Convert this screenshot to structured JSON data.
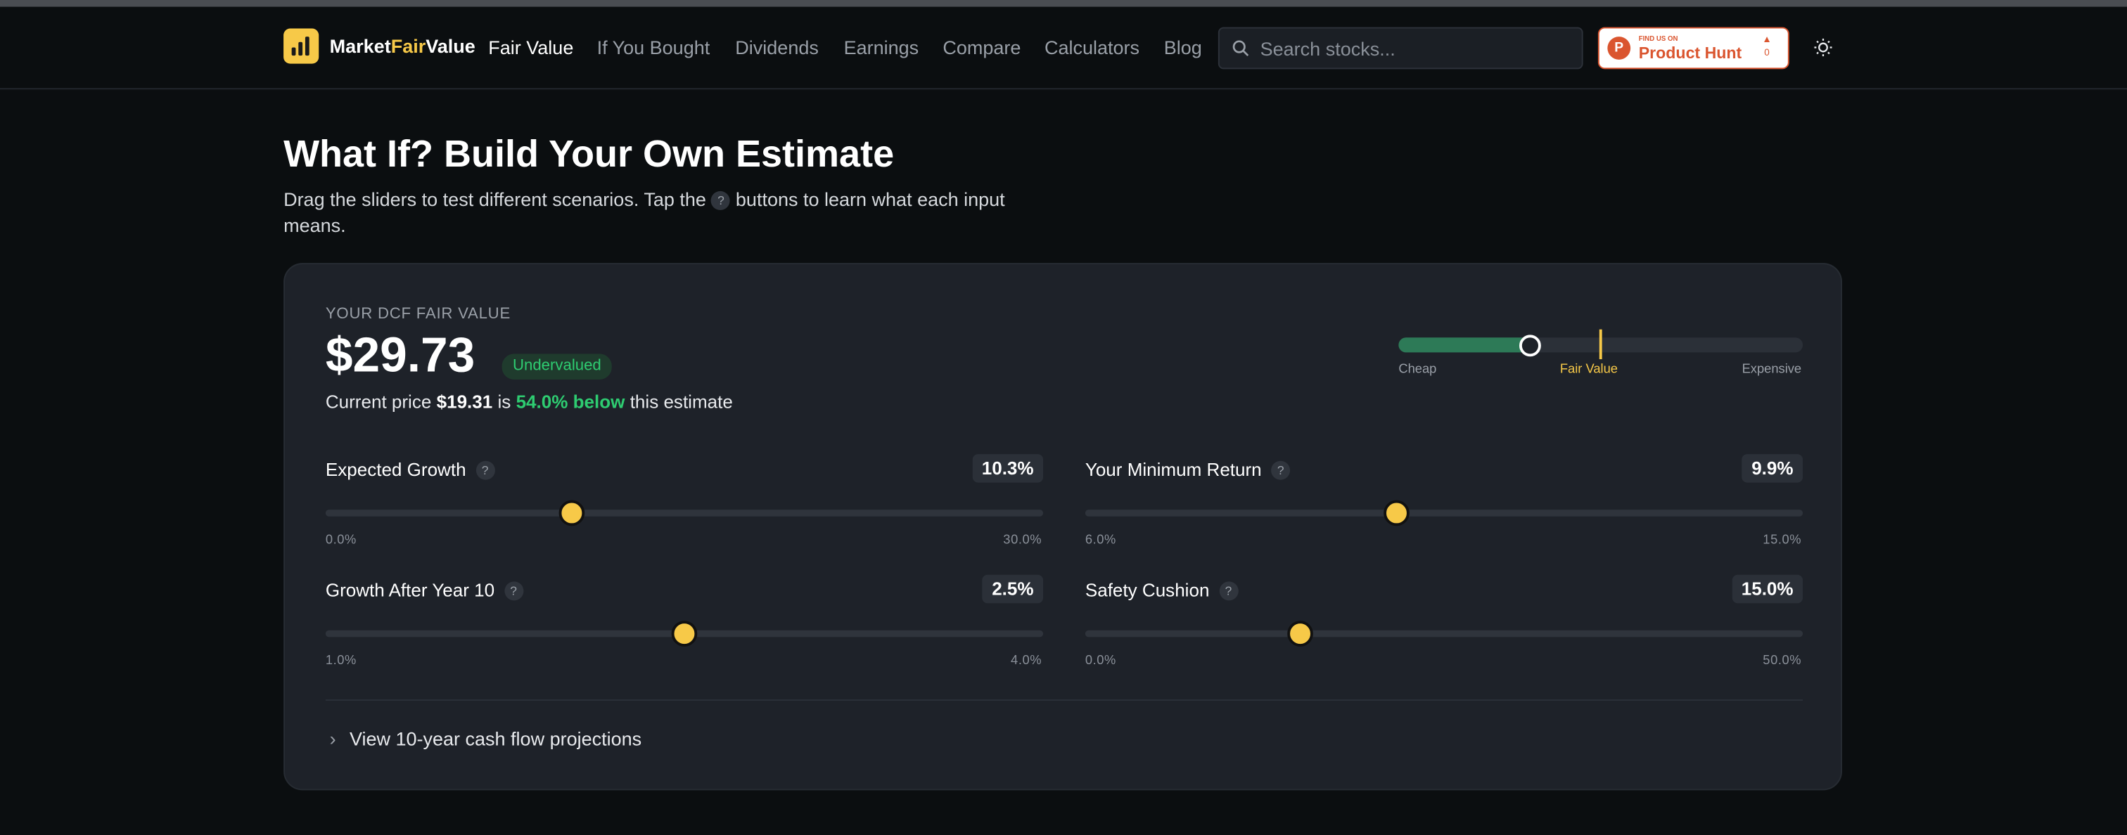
{
  "nav": {
    "brand_a": "Market",
    "brand_b": "Fair",
    "brand_c": "Value",
    "links": [
      "Fair Value",
      "If You Bought",
      "Dividends",
      "Earnings",
      "Compare",
      "Calculators",
      "Blog"
    ],
    "search_placeholder": "Search stocks...",
    "badge_small": "FIND US ON",
    "badge_big": "Product Hunt",
    "badge_count": "0"
  },
  "header": {
    "title": "What If? Build Your Own Estimate",
    "subtitle_a": "Drag the sliders to test different scenarios. Tap the",
    "help": "?",
    "subtitle_b": "buttons to learn what each input means."
  },
  "card": {
    "label": "YOUR DCF FAIR VALUE",
    "fair_value": "$29.73",
    "status": "Undervalued",
    "price_a": "Current price",
    "price": "$19.31",
    "price_b": "is",
    "gap": "54.0% below",
    "price_c": "this estimate",
    "gauge_labels": [
      "Cheap",
      "Fair Value",
      "Expensive"
    ],
    "sliders": [
      {
        "name": "Expected Growth",
        "value": 10.3,
        "value_label": "10.3%",
        "min": 0,
        "min_label": "0.0%",
        "max": 30,
        "max_label": "30.0%"
      },
      {
        "name": "Your Minimum Return",
        "value": 9.9,
        "value_label": "9.9%",
        "min": 6,
        "min_label": "6.0%",
        "max": 15,
        "max_label": "15.0%"
      },
      {
        "name": "Growth After Year 10",
        "value": 2.5,
        "value_label": "2.5%",
        "min": 1,
        "min_label": "1.0%",
        "max": 4,
        "max_label": "4.0%"
      },
      {
        "name": "Safety Cushion",
        "value": 15,
        "value_label": "15.0%",
        "min": 0,
        "min_label": "0.0%",
        "max": 50,
        "max_label": "50.0%"
      }
    ],
    "projections": "View 10-year cash flow projections"
  }
}
